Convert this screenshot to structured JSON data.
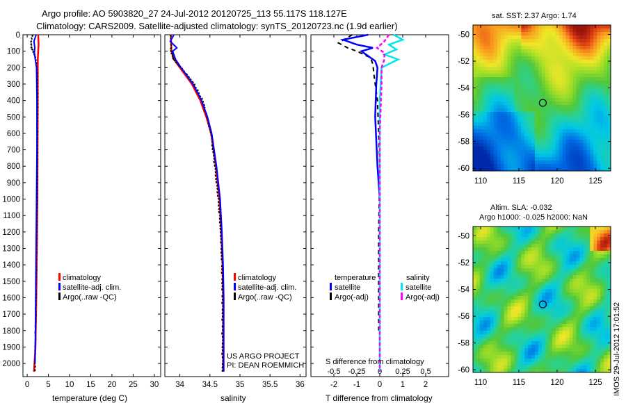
{
  "title_line1": "Argo profile: AO 5903820_27 24-Jul-2012 20120725_113 55.117S 118.127E",
  "title_line2": "Climatology: CARS2009. Satellite-adjusted climatology: synTS_20120723.nc (1.9d earlier)",
  "colors": {
    "clim": "#ff0000",
    "sat": "#0000ff",
    "argo": "#000000",
    "sat_s": "#00e5ee",
    "argo_s": "#ff00ff"
  },
  "chart_data": [
    {
      "type": "line",
      "name": "temperature",
      "xlabel": "temperature (deg C)",
      "xlim": [
        -1,
        31.5
      ],
      "ylim": [
        2080,
        0
      ],
      "xticks": [
        0,
        5,
        10,
        15,
        20,
        25,
        30
      ],
      "yticks": [
        0,
        100,
        200,
        300,
        400,
        500,
        600,
        700,
        800,
        900,
        1000,
        1100,
        1200,
        1300,
        1400,
        1500,
        1600,
        1700,
        1800,
        1900,
        2000
      ],
      "legend": [
        "climatology",
        "satellite-adj. clim.",
        "Argo(..raw -QC)"
      ],
      "series": [
        {
          "name": "climatology",
          "depth": [
            0,
            60,
            100,
            150,
            200,
            400,
            700,
            1000,
            1300,
            1600,
            1900,
            2050
          ],
          "values": [
            2.6,
            2.7,
            2.6,
            2.5,
            2.5,
            2.5,
            2.45,
            2.4,
            2.3,
            2.15,
            1.95,
            1.6
          ]
        },
        {
          "name": "satellite",
          "depth": [
            0,
            40,
            80,
            110,
            150,
            200,
            400,
            700,
            1000,
            1300,
            1600,
            1900,
            2000
          ],
          "values": [
            2.1,
            1.6,
            1.8,
            1.7,
            1.9,
            2.2,
            2.3,
            2.3,
            2.2,
            2.1,
            2.0,
            1.9,
            1.85
          ]
        },
        {
          "name": "argo",
          "depth": [
            0,
            40,
            80,
            100,
            130,
            180,
            250,
            400,
            700,
            1000,
            1300,
            1600,
            1900,
            2050
          ],
          "values": [
            1.3,
            0.9,
            1.0,
            1.4,
            1.9,
            2.2,
            2.4,
            2.45,
            2.4,
            2.35,
            2.2,
            2.05,
            1.9,
            1.8
          ]
        }
      ]
    },
    {
      "type": "line",
      "name": "salinity",
      "xlabel": "salinity",
      "xlim": [
        33.75,
        36.1
      ],
      "ylim": [
        2080,
        0
      ],
      "xticks": [
        34,
        34.5,
        35,
        35.5,
        36
      ],
      "xtick_labels": [
        "34",
        "34.5",
        "35",
        "35.5",
        "36"
      ],
      "legend": [
        "climatology",
        "satellite-adj. clim.",
        "Argo(..raw -QC)"
      ],
      "credit_line1": "US ARGO PROJECT",
      "credit_line2": "PI: DEAN ROEMMICH",
      "series": [
        {
          "name": "climatology",
          "depth": [
            0,
            100,
            150,
            200,
            300,
            400,
            500,
            600,
            800,
            1000,
            1200,
            1400,
            1600,
            1800,
            2050
          ],
          "values": [
            33.85,
            33.86,
            33.9,
            34.0,
            34.2,
            34.34,
            34.44,
            34.52,
            34.6,
            34.66,
            34.69,
            34.71,
            34.72,
            34.72,
            34.72
          ]
        },
        {
          "name": "satellite",
          "depth": [
            0,
            40,
            80,
            100,
            150,
            200,
            300,
            400,
            500,
            600,
            800,
            1000,
            1200,
            1400,
            1600,
            1800,
            2050
          ],
          "values": [
            33.9,
            33.84,
            33.95,
            33.88,
            33.93,
            34.02,
            34.22,
            34.36,
            34.46,
            34.53,
            34.61,
            34.67,
            34.7,
            34.72,
            34.73,
            34.73,
            34.73
          ]
        },
        {
          "name": "argo",
          "depth": [
            0,
            100,
            150,
            200,
            300,
            400,
            500,
            600,
            800,
            1000,
            1200,
            1400,
            1600,
            1800,
            2050
          ],
          "values": [
            33.85,
            33.85,
            33.9,
            34.02,
            34.24,
            34.38,
            34.45,
            34.52,
            34.58,
            34.64,
            34.68,
            34.7,
            34.71,
            34.71,
            34.71
          ]
        }
      ]
    },
    {
      "type": "line",
      "name": "difference",
      "xlabel": "T difference from climatology",
      "xlabel_top": "S difference from climatology",
      "xlim": [
        -3,
        3
      ],
      "ylim": [
        2080,
        0
      ],
      "xticks": [
        -2,
        -1,
        0,
        1,
        2
      ],
      "s_ticks": [
        -0.5,
        -0.25,
        0,
        0.25,
        0.5
      ],
      "s_tick_labels": [
        "-0.5",
        "-0.25",
        "0",
        "0.25",
        "0.5"
      ],
      "legend_temp_title": "temperature",
      "legend_sal_title": "salinity",
      "legend": [
        "satellite",
        "Argo(-adj)",
        "satellite",
        "Argo(-adj)"
      ],
      "series": [
        {
          "name": "T satellite",
          "depth": [
            0,
            30,
            60,
            80,
            100,
            130,
            160,
            200,
            300,
            500,
            800,
            1000
          ],
          "values": [
            -0.5,
            -1.6,
            -1.0,
            -0.3,
            -0.8,
            -0.5,
            -0.2,
            -0.1,
            -0.15,
            -0.2,
            -0.1,
            0
          ]
        },
        {
          "name": "T argo",
          "depth": [
            0,
            50,
            80,
            100,
            120,
            140,
            180,
            250,
            400,
            800,
            1200,
            1600,
            1800
          ],
          "values": [
            -1.2,
            -1.8,
            -1.4,
            -1.0,
            -0.7,
            -0.4,
            -0.3,
            -0.25,
            -0.1,
            0,
            -0.05,
            -0.05,
            -0.05
          ]
        },
        {
          "name": "S satellite",
          "depth": [
            0,
            30,
            60,
            90,
            120,
            150,
            200,
            400,
            1000,
            2050
          ],
          "values": [
            0.15,
            0.25,
            0.1,
            0.18,
            0.05,
            0.2,
            0.02,
            0,
            0,
            0
          ]
        },
        {
          "name": "S argo",
          "depth": [
            0,
            40,
            80,
            110,
            150,
            200,
            300,
            600,
            1200,
            2050
          ],
          "values": [
            0.1,
            0.05,
            -0.03,
            0.05,
            0.05,
            0.02,
            0.02,
            0,
            0,
            0
          ]
        }
      ]
    },
    {
      "type": "heatmap",
      "name": "sst-map",
      "title": "sat. SST: 2.37 Argo: 1.74",
      "xlim": [
        109,
        127
      ],
      "ylim": [
        -60.2,
        -49.3
      ],
      "xticks": [
        110,
        115,
        120,
        125
      ],
      "yticks": [
        -50,
        -52,
        -54,
        -56,
        -58,
        -60
      ],
      "profile_lon": 118.127,
      "profile_lat": -55.117
    },
    {
      "type": "heatmap",
      "name": "sla-map",
      "title_line1": "Altim. SLA: -0.032",
      "title_line2": "Argo h1000: -0.025 h2000: NaN",
      "xlim": [
        109,
        127
      ],
      "ylim": [
        -60.2,
        -49.3
      ],
      "xticks": [
        110,
        115,
        120,
        125
      ],
      "yticks": [
        -50,
        -52,
        -54,
        -56,
        -58,
        -60
      ],
      "profile_lon": 118.127,
      "profile_lat": -55.117,
      "watermark": "IMOS 29-Jul-2012 17:01:52"
    }
  ]
}
